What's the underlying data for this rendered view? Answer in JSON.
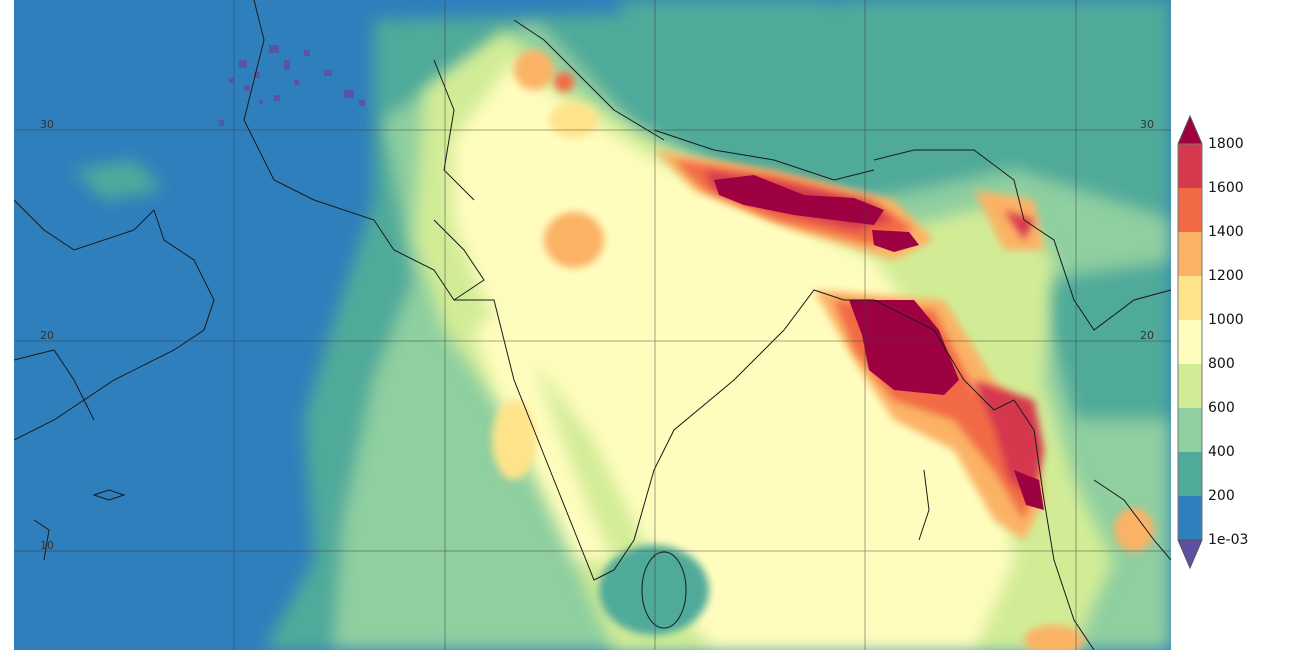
{
  "map": {
    "lat_labels": [
      "30",
      "20",
      "10"
    ],
    "lat_values": [
      30,
      20,
      10
    ],
    "ocean_color": "#2f7fbc",
    "coastline_color": "#1a1a1a",
    "gridline_color": "#3a3a3a"
  },
  "colorbar": {
    "labels": [
      "1800",
      "1600",
      "1400",
      "1200",
      "1000",
      "800",
      "600",
      "400",
      "200",
      "1e-03"
    ],
    "bins": [
      {
        "color": "#2f7fbc"
      },
      {
        "color": "#4faa9a"
      },
      {
        "color": "#8fcfa0"
      },
      {
        "color": "#d2ec96"
      },
      {
        "color": "#fffdbe"
      },
      {
        "color": "#fee38b"
      },
      {
        "color": "#fbb265"
      },
      {
        "color": "#f26a44"
      },
      {
        "color": "#d5394e"
      }
    ],
    "over_color": "#9e0142",
    "under_color": "#5e4fa2",
    "extend": "both"
  },
  "overlay_markings": [
    {
      "color": "#5e4fa2"
    }
  ]
}
